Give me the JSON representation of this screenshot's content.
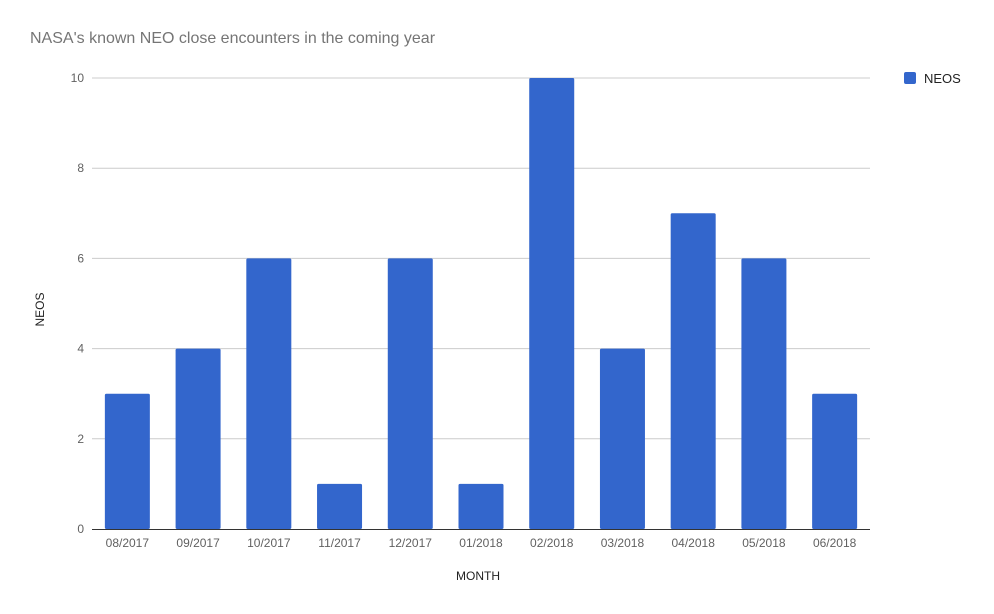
{
  "chart_data": {
    "type": "bar",
    "title": "NASA's known NEO close encounters in the coming year",
    "xlabel": "MONTH",
    "ylabel": "NEOS",
    "categories": [
      "08/2017",
      "09/2017",
      "10/2017",
      "11/2017",
      "12/2017",
      "01/2018",
      "02/2018",
      "03/2018",
      "04/2018",
      "05/2018",
      "06/2018"
    ],
    "series": [
      {
        "name": "NEOS",
        "values": [
          3,
          4,
          6,
          1,
          6,
          1,
          10,
          4,
          7,
          6,
          3
        ],
        "color": "#3366cc"
      }
    ],
    "ylim": [
      0,
      10
    ],
    "yticks": [
      0,
      2,
      4,
      6,
      8,
      10
    ],
    "grid": true,
    "legend_position": "right"
  }
}
